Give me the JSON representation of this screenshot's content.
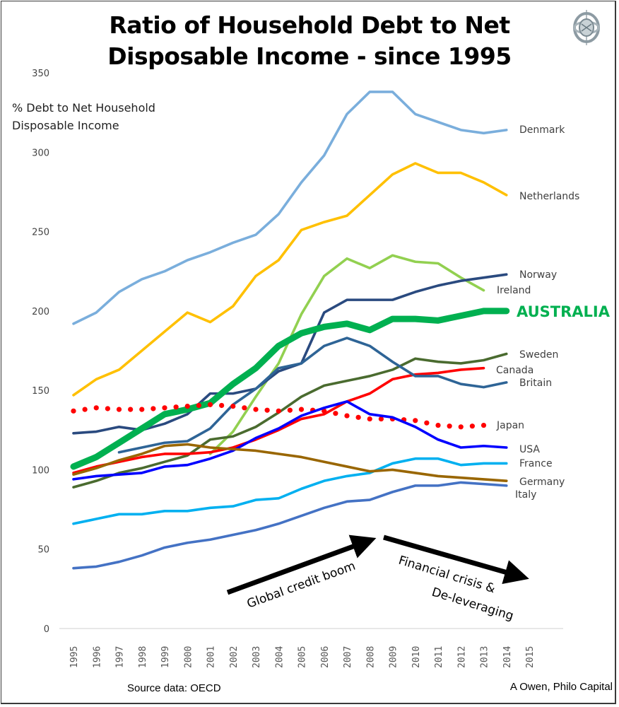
{
  "title_line1": "Ratio of Household Debt to Net",
  "title_line2": "Disposable Income - since 1995",
  "y_label_line1": "% Debt to Net Household",
  "y_label_line2": "Disposable Income",
  "source": "Source data:  OECD",
  "credit": "A Owen, Philo Capital",
  "logo_icon": "gyroscope-logo-icon",
  "chart_data": {
    "type": "line",
    "title": "Ratio of Household Debt to Net Disposable Income - since 1995",
    "xlabel": "",
    "ylabel": "% Debt to Net Household Disposable Income",
    "x": [
      1995,
      1996,
      1997,
      1998,
      1999,
      2000,
      2001,
      2002,
      2003,
      2004,
      2005,
      2006,
      2007,
      2008,
      2009,
      2010,
      2011,
      2012,
      2013,
      2014,
      2015
    ],
    "x_tick_labels": [
      "1995",
      "1996",
      "1997",
      "1998",
      "1999",
      "2000",
      "2001",
      "2002",
      "2003",
      "2004",
      "2005",
      "2006",
      "2007",
      "2008",
      "2009",
      "2010",
      "2011",
      "2012",
      "2013",
      "2014",
      "2015"
    ],
    "y_ticks": [
      0,
      50,
      100,
      150,
      200,
      250,
      300,
      350
    ],
    "y_tick_labels": [
      "0",
      "50",
      "100",
      "150",
      "200",
      "250",
      "300",
      "350"
    ],
    "ylim": [
      0,
      350
    ],
    "grid": false,
    "legend": "direct labels at right end of each line",
    "series": [
      {
        "name": "Denmark",
        "label": "Denmark",
        "color": "#7aaedc",
        "style": "solid",
        "weight": "normal",
        "values": [
          192,
          199,
          212,
          220,
          225,
          232,
          237,
          243,
          248,
          261,
          281,
          298,
          324,
          338,
          338,
          324,
          319,
          314,
          312,
          314,
          null
        ]
      },
      {
        "name": "Netherlands",
        "label": "Netherlands",
        "color": "#ffc000",
        "style": "solid",
        "weight": "normal",
        "values": [
          147,
          157,
          163,
          175,
          187,
          199,
          193,
          203,
          222,
          232,
          251,
          256,
          260,
          273,
          286,
          293,
          287,
          287,
          281,
          273,
          null
        ]
      },
      {
        "name": "Ireland",
        "label": "Ireland",
        "color": "#92d050",
        "style": "solid",
        "weight": "normal",
        "values": [
          null,
          null,
          null,
          null,
          null,
          null,
          110,
          124,
          146,
          167,
          198,
          222,
          233,
          227,
          235,
          231,
          230,
          221,
          213,
          null,
          null
        ]
      },
      {
        "name": "Norway",
        "label": "Norway",
        "color": "#2a4a7f",
        "style": "solid",
        "weight": "normal",
        "values": [
          123,
          124,
          127,
          125,
          129,
          135,
          148,
          148,
          151,
          162,
          167,
          199,
          207,
          207,
          207,
          212,
          216,
          219,
          221,
          223,
          null
        ]
      },
      {
        "name": "Australia",
        "label": "AUSTRALIA",
        "color": "#00b050",
        "style": "solid",
        "weight": "heavy",
        "values": [
          102,
          108,
          117,
          126,
          135,
          138,
          142,
          154,
          164,
          178,
          186,
          190,
          192,
          188,
          195,
          195,
          194,
          197,
          200,
          200,
          null
        ]
      },
      {
        "name": "Sweden",
        "label": "Sweden",
        "color": "#4a6b2f",
        "style": "solid",
        "weight": "normal",
        "values": [
          89,
          93,
          98,
          101,
          105,
          109,
          119,
          121,
          127,
          136,
          146,
          153,
          156,
          159,
          163,
          170,
          168,
          167,
          169,
          173,
          null
        ]
      },
      {
        "name": "Canada",
        "label": "Canada",
        "color": "#ff0000",
        "style": "solid",
        "weight": "normal",
        "values": [
          98,
          102,
          105,
          108,
          110,
          110,
          111,
          114,
          119,
          125,
          132,
          135,
          143,
          148,
          157,
          160,
          161,
          163,
          164,
          null,
          null
        ]
      },
      {
        "name": "Britain",
        "label": "Britain",
        "color": "#2e6496",
        "style": "solid",
        "weight": "normal",
        "values": [
          null,
          null,
          111,
          114,
          117,
          118,
          126,
          141,
          151,
          164,
          167,
          178,
          183,
          178,
          168,
          159,
          159,
          154,
          152,
          155,
          null
        ]
      },
      {
        "name": "Japan",
        "label": "Japan",
        "color": "#ff0000",
        "style": "dotted",
        "weight": "normal",
        "values": [
          137,
          139,
          138,
          138,
          139,
          140,
          141,
          140,
          138,
          137,
          138,
          137,
          134,
          132,
          132,
          131,
          128,
          127,
          128,
          null,
          null
        ]
      },
      {
        "name": "USA",
        "label": "USA",
        "color": "#0000ff",
        "style": "solid",
        "weight": "normal",
        "values": [
          94,
          96,
          97,
          98,
          102,
          103,
          107,
          112,
          120,
          126,
          134,
          139,
          143,
          135,
          133,
          127,
          119,
          114,
          115,
          114,
          null
        ]
      },
      {
        "name": "France",
        "label": "France",
        "color": "#00b0f0",
        "style": "solid",
        "weight": "normal",
        "values": [
          66,
          69,
          72,
          72,
          74,
          74,
          76,
          77,
          81,
          82,
          88,
          93,
          96,
          98,
          104,
          107,
          107,
          103,
          104,
          104,
          null
        ]
      },
      {
        "name": "Germany",
        "label": "Germany",
        "color": "#996600",
        "style": "solid",
        "weight": "normal",
        "values": [
          97,
          101,
          106,
          110,
          115,
          116,
          114,
          113,
          112,
          110,
          108,
          105,
          102,
          99,
          100,
          98,
          96,
          95,
          94,
          93,
          null
        ]
      },
      {
        "name": "Italy",
        "label": "Italy",
        "color": "#4472c4",
        "style": "solid",
        "weight": "normal",
        "values": [
          38,
          39,
          42,
          46,
          51,
          54,
          56,
          59,
          62,
          66,
          71,
          76,
          80,
          81,
          86,
          90,
          90,
          92,
          91,
          90,
          null
        ]
      }
    ],
    "annotations": [
      {
        "text": "Global credit boom",
        "arrow": "up-right",
        "from_year": 2002.3,
        "to_year": 2008.5
      },
      {
        "text_line1": "Financial crisis &",
        "text_line2": "De-leveraging",
        "arrow": "down-right",
        "from_year": 2009,
        "to_year": 2015.2
      }
    ]
  }
}
